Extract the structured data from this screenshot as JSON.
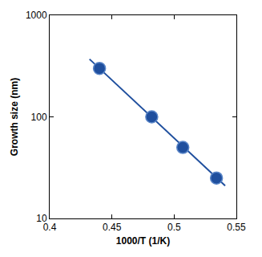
{
  "chart_data": {
    "type": "scatter",
    "xlabel": "1000/T (1/K)",
    "ylabel": "Growth size (nm)",
    "log": "y",
    "grid": false,
    "xlim": [
      0.4,
      0.55
    ],
    "xticks": [
      0.4,
      0.45,
      0.5,
      0.55
    ],
    "ylim": [
      10,
      1000
    ],
    "yticks": [
      10,
      100,
      1000
    ],
    "series": [
      {
        "type": "line",
        "line_style": "solid",
        "color": "#1f4f9e",
        "x": [
          0.432,
          0.541
        ],
        "values": [
          370,
          21
        ]
      },
      {
        "type": "scatter",
        "marker": "circle",
        "color": "#1f4f9e",
        "x": [
          0.44,
          0.482,
          0.507,
          0.534
        ],
        "values": [
          300,
          100,
          50,
          25
        ]
      }
    ]
  }
}
